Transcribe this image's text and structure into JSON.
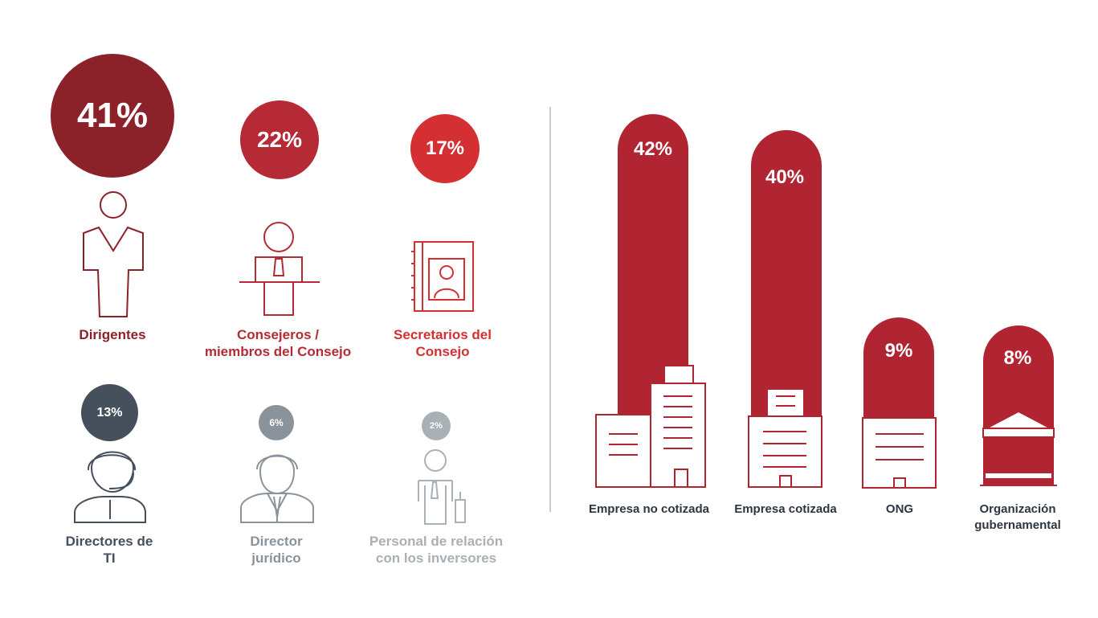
{
  "colors": {
    "dark_red": "#8b2229",
    "red": "#b52a35",
    "bright_red": "#d43033",
    "slate": "#46505c",
    "gray": "#8a939b",
    "light_gray": "#a9b0b6",
    "bar": "#b12533"
  },
  "chart_data": [
    {
      "type": "bubble",
      "unit": "%",
      "categories": [
        "Dirigentes",
        "Consejeros / miembros del Consejo",
        "Secretarios del Consejo",
        "Directores de TI",
        "Director jurídico",
        "Personal de relación con los inversores"
      ],
      "values": [
        41,
        22,
        17,
        13,
        6,
        2
      ],
      "value_labels": [
        "41%",
        "22%",
        "17%",
        "13%",
        "6%",
        "2%"
      ],
      "label_lines": [
        [
          "Dirigentes"
        ],
        [
          "Consejeros /",
          "miembros del Consejo"
        ],
        [
          "Secretarios del",
          "Consejo"
        ],
        [
          "Directores de",
          "TI"
        ],
        [
          "Director",
          "jurídico"
        ],
        [
          "Personal de relación",
          "con los inversores"
        ]
      ],
      "icons": [
        "executive-person-icon",
        "board-member-podium-icon",
        "board-secretary-book-icon",
        "it-director-headset-icon",
        "legal-director-suit-icon",
        "investor-relations-chart-icon"
      ]
    },
    {
      "type": "bar",
      "unit": "%",
      "categories": [
        "Empresa no cotizada",
        "Empresa cotizada",
        "ONG",
        "Organización gubernamental"
      ],
      "values": [
        42,
        40,
        9,
        8
      ],
      "value_labels": [
        "42%",
        "40%",
        "9%",
        "8%"
      ],
      "label_lines": [
        [
          "Empresa no cotizada"
        ],
        [
          "Empresa cotizada"
        ],
        [
          "ONG"
        ],
        [
          "Organización",
          "gubernamental"
        ]
      ],
      "icons": [
        "office-towers-icon",
        "office-building-icon",
        "small-building-icon",
        "government-building-icon"
      ]
    }
  ]
}
